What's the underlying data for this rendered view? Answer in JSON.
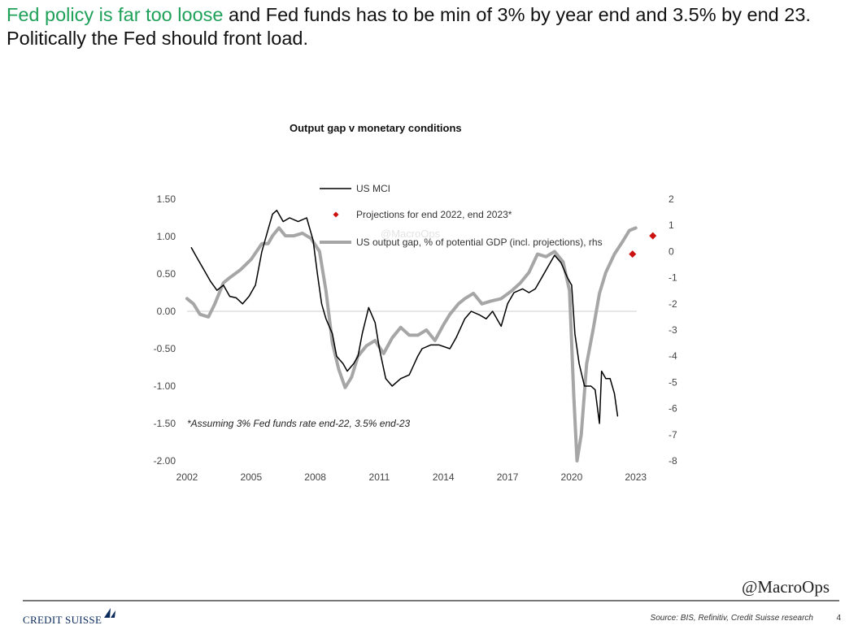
{
  "headline": {
    "highlight": "Fed policy is far too loose",
    "rest": " and Fed funds has to be min of 3%  by year end and 3.5% by end 23. Politically the Fed should front load."
  },
  "watermark": "@MacroOps",
  "footer": {
    "logo_text": "CREDIT SUISSE",
    "source": "Source: BIS, Refinitiv, Credit Suisse research",
    "page_number": "4"
  },
  "chart_data": {
    "type": "line",
    "title": "Output gap v monetary conditions",
    "xlabel": "",
    "ylabel": "",
    "xlim": [
      2002,
      2024
    ],
    "ylim_left": [
      -2.0,
      1.5
    ],
    "ylim_right": [
      -8,
      2
    ],
    "x_ticks": [
      "2002",
      "2005",
      "2008",
      "2011",
      "2014",
      "2017",
      "2020",
      "2023"
    ],
    "y_left_ticks": [
      "1.50",
      "1.00",
      "0.50",
      "0.00",
      "-0.50",
      "-1.00",
      "-1.50",
      "-2.00"
    ],
    "y_right_ticks": [
      "2",
      "1",
      "0",
      "-1",
      "-2",
      "-3",
      "-4",
      "-5",
      "-6",
      "-7",
      "-8"
    ],
    "annotation": "*Assuming 3% Fed funds rate end-22, 3.5% end-23",
    "watermark_faint": "@MacroOps",
    "series": [
      {
        "name": "US MCI",
        "axis": "left",
        "color": "#000000",
        "points": [
          [
            2002.2,
            0.85
          ],
          [
            2002.5,
            0.7
          ],
          [
            2002.8,
            0.55
          ],
          [
            2003.1,
            0.4
          ],
          [
            2003.4,
            0.28
          ],
          [
            2003.7,
            0.35
          ],
          [
            2004.0,
            0.2
          ],
          [
            2004.3,
            0.18
          ],
          [
            2004.6,
            0.1
          ],
          [
            2004.9,
            0.2
          ],
          [
            2005.2,
            0.35
          ],
          [
            2005.5,
            0.8
          ],
          [
            2005.8,
            1.1
          ],
          [
            2006.0,
            1.3
          ],
          [
            2006.2,
            1.35
          ],
          [
            2006.5,
            1.2
          ],
          [
            2006.8,
            1.25
          ],
          [
            2007.2,
            1.2
          ],
          [
            2007.6,
            1.25
          ],
          [
            2007.9,
            0.95
          ],
          [
            2008.1,
            0.5
          ],
          [
            2008.3,
            0.1
          ],
          [
            2008.5,
            -0.1
          ],
          [
            2008.8,
            -0.3
          ],
          [
            2009.0,
            -0.6
          ],
          [
            2009.3,
            -0.7
          ],
          [
            2009.5,
            -0.8
          ],
          [
            2009.8,
            -0.7
          ],
          [
            2010.0,
            -0.6
          ],
          [
            2010.2,
            -0.3
          ],
          [
            2010.5,
            0.05
          ],
          [
            2010.8,
            -0.15
          ],
          [
            2011.0,
            -0.5
          ],
          [
            2011.3,
            -0.9
          ],
          [
            2011.6,
            -1.0
          ],
          [
            2012.0,
            -0.9
          ],
          [
            2012.4,
            -0.85
          ],
          [
            2012.8,
            -0.6
          ],
          [
            2013.0,
            -0.5
          ],
          [
            2013.4,
            -0.45
          ],
          [
            2013.8,
            -0.45
          ],
          [
            2014.3,
            -0.5
          ],
          [
            2014.6,
            -0.35
          ],
          [
            2015.0,
            -0.1
          ],
          [
            2015.3,
            0.0
          ],
          [
            2015.7,
            -0.05
          ],
          [
            2016.0,
            -0.1
          ],
          [
            2016.3,
            0.0
          ],
          [
            2016.7,
            -0.2
          ],
          [
            2017.0,
            0.1
          ],
          [
            2017.3,
            0.25
          ],
          [
            2017.7,
            0.3
          ],
          [
            2018.0,
            0.25
          ],
          [
            2018.3,
            0.3
          ],
          [
            2018.6,
            0.45
          ],
          [
            2018.9,
            0.6
          ],
          [
            2019.2,
            0.75
          ],
          [
            2019.5,
            0.65
          ],
          [
            2019.8,
            0.45
          ],
          [
            2020.0,
            0.35
          ],
          [
            2020.15,
            -0.3
          ],
          [
            2020.35,
            -0.7
          ],
          [
            2020.6,
            -1.0
          ],
          [
            2020.9,
            -1.0
          ],
          [
            2021.1,
            -1.05
          ],
          [
            2021.3,
            -1.5
          ],
          [
            2021.4,
            -0.8
          ],
          [
            2021.6,
            -0.9
          ],
          [
            2021.8,
            -0.9
          ],
          [
            2022.0,
            -1.1
          ],
          [
            2022.15,
            -1.4
          ]
        ]
      },
      {
        "name": "US output gap, % of potential GDP (incl. projections), rhs",
        "axis": "right",
        "color": "#a6a6a6",
        "points": [
          [
            2002.0,
            -1.8
          ],
          [
            2002.3,
            -2.0
          ],
          [
            2002.6,
            -2.4
          ],
          [
            2003.0,
            -2.5
          ],
          [
            2003.3,
            -2.0
          ],
          [
            2003.7,
            -1.2
          ],
          [
            2004.0,
            -1.0
          ],
          [
            2004.5,
            -0.7
          ],
          [
            2005.0,
            -0.3
          ],
          [
            2005.5,
            0.3
          ],
          [
            2005.8,
            0.3
          ],
          [
            2006.0,
            0.6
          ],
          [
            2006.3,
            0.9
          ],
          [
            2006.6,
            0.6
          ],
          [
            2007.0,
            0.6
          ],
          [
            2007.4,
            0.7
          ],
          [
            2007.8,
            0.5
          ],
          [
            2008.2,
            0.0
          ],
          [
            2008.5,
            -1.5
          ],
          [
            2008.8,
            -3.5
          ],
          [
            2009.1,
            -4.5
          ],
          [
            2009.4,
            -5.2
          ],
          [
            2009.7,
            -4.8
          ],
          [
            2010.0,
            -4.0
          ],
          [
            2010.4,
            -3.6
          ],
          [
            2010.8,
            -3.4
          ],
          [
            2011.2,
            -3.9
          ],
          [
            2011.6,
            -3.3
          ],
          [
            2012.0,
            -2.9
          ],
          [
            2012.4,
            -3.2
          ],
          [
            2012.8,
            -3.2
          ],
          [
            2013.2,
            -3.0
          ],
          [
            2013.6,
            -3.4
          ],
          [
            2014.0,
            -2.8
          ],
          [
            2014.3,
            -2.4
          ],
          [
            2014.7,
            -2.0
          ],
          [
            2015.0,
            -1.8
          ],
          [
            2015.4,
            -1.6
          ],
          [
            2015.8,
            -2.0
          ],
          [
            2016.2,
            -1.9
          ],
          [
            2016.7,
            -1.8
          ],
          [
            2017.2,
            -1.5
          ],
          [
            2017.6,
            -1.2
          ],
          [
            2018.0,
            -0.8
          ],
          [
            2018.4,
            -0.1
          ],
          [
            2018.8,
            -0.2
          ],
          [
            2019.2,
            0.0
          ],
          [
            2019.6,
            -0.4
          ],
          [
            2019.9,
            -1.5
          ],
          [
            2020.1,
            -5.5
          ],
          [
            2020.25,
            -8.5
          ],
          [
            2020.45,
            -7.0
          ],
          [
            2020.7,
            -4.3
          ],
          [
            2021.0,
            -3.0
          ],
          [
            2021.3,
            -1.6
          ],
          [
            2021.6,
            -0.8
          ],
          [
            2022.0,
            -0.1
          ],
          [
            2022.4,
            0.4
          ],
          [
            2022.7,
            0.8
          ],
          [
            2023.0,
            0.9
          ]
        ]
      }
    ],
    "projections": {
      "name": "Projections for end 2022, end 2023*",
      "color": "#cc1111",
      "points": [
        [
          2022.85,
          -0.1
        ],
        [
          2023.8,
          0.6
        ]
      ]
    }
  }
}
